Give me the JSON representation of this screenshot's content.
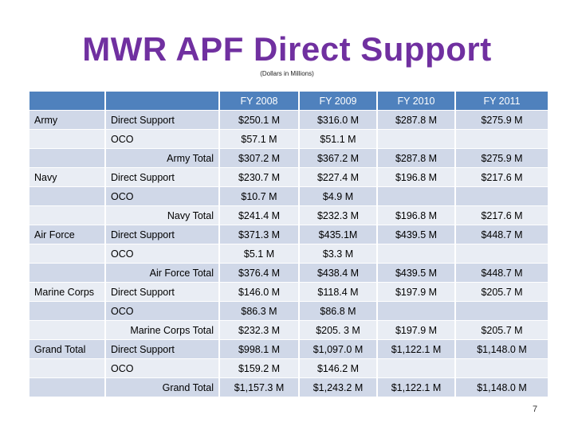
{
  "slide": {
    "title": "MWR APF Direct Support",
    "subtitle": "(Dollars in Millions)",
    "page_number": "7"
  },
  "table": {
    "headers": [
      "",
      "",
      "FY 2008",
      "FY 2009",
      "FY 2010",
      "FY 2011"
    ],
    "rows": [
      {
        "group": "Army",
        "category": "Direct Support",
        "values": [
          "$250.1 M",
          "$316.0 M",
          "$287.8 M",
          "$275.9 M"
        ]
      },
      {
        "group": "",
        "category": "OCO",
        "values": [
          "$57.1 M",
          "$51.1 M",
          "",
          ""
        ]
      },
      {
        "group": "",
        "category": "Army Total",
        "values": [
          "$307.2 M",
          "$367.2 M",
          "$287.8 M",
          "$275.9 M"
        ]
      },
      {
        "group": "Navy",
        "category": "Direct Support",
        "values": [
          "$230.7 M",
          "$227.4 M",
          "$196.8 M",
          "$217.6 M"
        ]
      },
      {
        "group": "",
        "category": "OCO",
        "values": [
          "$10.7 M",
          "$4.9 M",
          "",
          ""
        ]
      },
      {
        "group": "",
        "category": "Navy Total",
        "values": [
          "$241.4 M",
          "$232.3 M",
          "$196.8 M",
          "$217.6 M"
        ]
      },
      {
        "group": "Air Force",
        "category": "Direct Support",
        "values": [
          "$371.3 M",
          "$435.1M",
          "$439.5 M",
          "$448.7 M"
        ]
      },
      {
        "group": "",
        "category": "OCO",
        "values": [
          "$5.1 M",
          "$3.3 M",
          "",
          ""
        ]
      },
      {
        "group": "",
        "category": "Air Force Total",
        "values": [
          "$376.4 M",
          "$438.4 M",
          "$439.5 M",
          "$448.7 M"
        ]
      },
      {
        "group": "Marine Corps",
        "category": "Direct Support",
        "values": [
          "$146.0 M",
          "$118.4 M",
          "$197.9 M",
          "$205.7 M"
        ]
      },
      {
        "group": "",
        "category": "OCO",
        "values": [
          "$86.3 M",
          "$86.8 M",
          "",
          ""
        ]
      },
      {
        "group": "",
        "category": "Marine Corps Total",
        "values": [
          "$232.3 M",
          "$205. 3 M",
          "$197.9 M",
          "$205.7 M"
        ]
      },
      {
        "group": "Grand Total",
        "category": "Direct Support",
        "values": [
          "$998.1 M",
          "$1,097.0 M",
          "$1,122.1 M",
          "$1,148.0 M"
        ]
      },
      {
        "group": "",
        "category": "OCO",
        "values": [
          "$159.2 M",
          "$146.2 M",
          "",
          ""
        ]
      },
      {
        "group": "",
        "category": "Grand Total",
        "values": [
          "$1,157.3 M",
          "$1,243.2 M",
          "$1,122.1 M",
          "$1,148.0 M"
        ]
      }
    ]
  },
  "colors": {
    "title": "#7030a0",
    "header_bg": "#4f81bd",
    "row_odd": "#d0d8e8",
    "row_even": "#e9edf4"
  }
}
